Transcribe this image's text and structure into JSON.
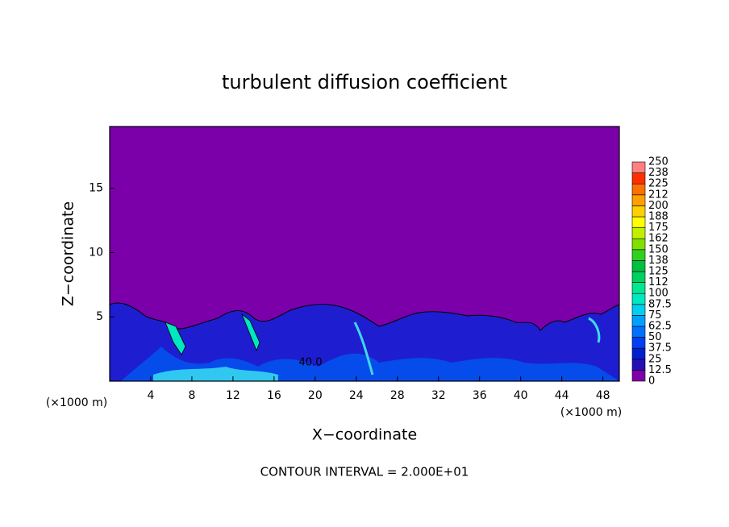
{
  "chart_data": {
    "type": "contour",
    "title": "turbulent diffusion coefficient",
    "xlabel": "X−coordinate",
    "ylabel": "Z−coordinate",
    "unit_label": "(×1000 m)",
    "footer": "CONTOUR INTERVAL = 2.000E+01",
    "annotations": [
      "40.0"
    ],
    "xlim": [
      0,
      49.6
    ],
    "xticks": [
      4,
      8,
      12,
      16,
      20,
      24,
      28,
      32,
      36,
      40,
      44,
      48
    ],
    "ylim": [
      0,
      19.8
    ],
    "yticks": [
      5,
      10,
      15
    ],
    "background_color": "#7b00aa",
    "colorbar_levels": [
      0,
      12.5,
      25,
      37.5,
      50,
      62.5,
      75,
      87.5,
      100,
      112,
      125,
      138,
      150,
      162,
      175,
      188,
      200,
      212,
      225,
      238,
      250
    ],
    "colorbar_colors": [
      "#7f00aa",
      "#2410b4",
      "#0020d0",
      "#0040f0",
      "#0070ff",
      "#00a0ff",
      "#00d0f0",
      "#00e8c0",
      "#00e890",
      "#00d060",
      "#00c040",
      "#30d020",
      "#80e000",
      "#c0f000",
      "#ffff00",
      "#ffd000",
      "#ffa000",
      "#ff7000",
      "#ff3000",
      "#ff8080"
    ]
  }
}
